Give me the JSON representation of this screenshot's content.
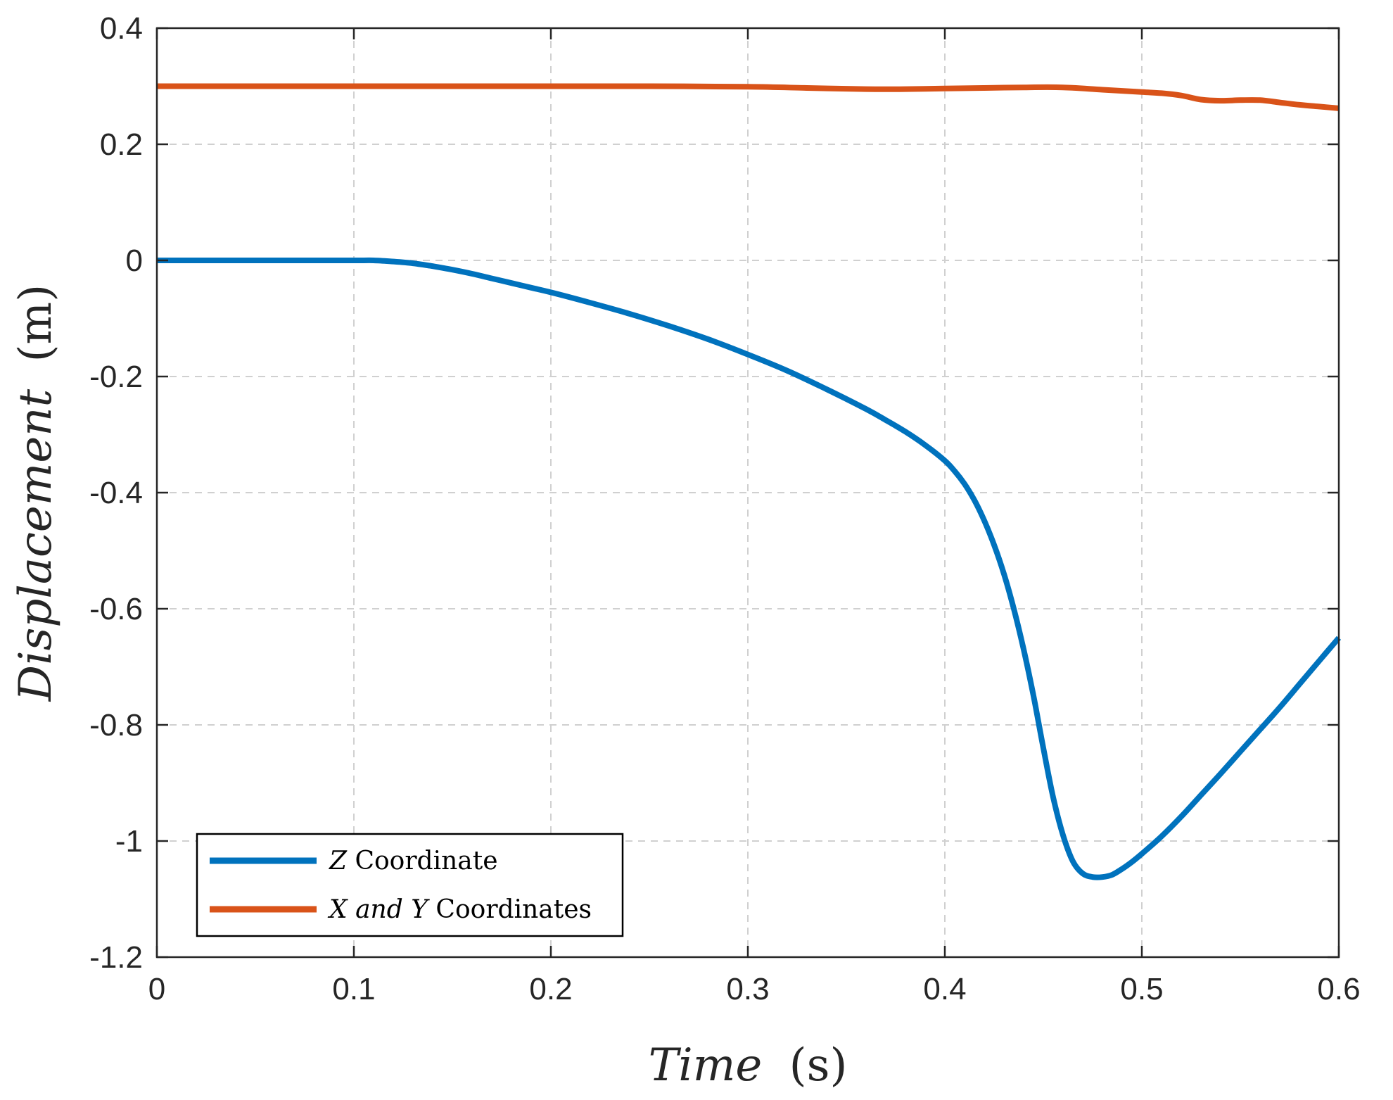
{
  "chart_data": {
    "type": "line",
    "title": "",
    "xlabel": {
      "var": "Time",
      "unit": "(s)"
    },
    "ylabel": {
      "var": "Displacement",
      "unit": "(m)"
    },
    "xlim": [
      0,
      0.6
    ],
    "ylim": [
      -1.2,
      0.4
    ],
    "xticks": [
      0,
      0.1,
      0.2,
      0.3,
      0.4,
      0.5,
      0.6
    ],
    "xtick_labels": [
      "0",
      "0.1",
      "0.2",
      "0.3",
      "0.4",
      "0.5",
      "0.6"
    ],
    "yticks": [
      0.4,
      0.2,
      0,
      -0.2,
      -0.4,
      -0.6,
      -0.8,
      -1,
      -1.2
    ],
    "ytick_labels": [
      "0.4",
      "0.2",
      "0",
      "-0.2",
      "-0.4",
      "-0.6",
      "-0.8",
      "-1",
      "-1.2"
    ],
    "grid": true,
    "legend_position": "bottom-left",
    "series": [
      {
        "name": "Z Coordinate",
        "legend_parts": [
          {
            "text": "Z",
            "italic": true
          },
          {
            "text": " Coordinate",
            "italic": false
          }
        ],
        "color": "#0072BD",
        "x": [
          0,
          0.05,
          0.1,
          0.11,
          0.12,
          0.13,
          0.14,
          0.15,
          0.16,
          0.17,
          0.18,
          0.19,
          0.2,
          0.22,
          0.24,
          0.26,
          0.28,
          0.3,
          0.32,
          0.34,
          0.36,
          0.37,
          0.38,
          0.39,
          0.4,
          0.405,
          0.41,
          0.415,
          0.42,
          0.425,
          0.43,
          0.435,
          0.44,
          0.445,
          0.45,
          0.455,
          0.46,
          0.465,
          0.47,
          0.475,
          0.48,
          0.485,
          0.49,
          0.495,
          0.5,
          0.51,
          0.52,
          0.53,
          0.54,
          0.55,
          0.56,
          0.57,
          0.58,
          0.59,
          0.6
        ],
        "y": [
          0,
          0,
          0,
          0,
          -0.002,
          -0.005,
          -0.01,
          -0.016,
          -0.023,
          -0.031,
          -0.039,
          -0.047,
          -0.055,
          -0.073,
          -0.092,
          -0.113,
          -0.136,
          -0.162,
          -0.19,
          -0.222,
          -0.256,
          -0.275,
          -0.295,
          -0.318,
          -0.345,
          -0.363,
          -0.385,
          -0.413,
          -0.448,
          -0.49,
          -0.54,
          -0.6,
          -0.67,
          -0.75,
          -0.84,
          -0.925,
          -0.99,
          -1.035,
          -1.056,
          -1.062,
          -1.062,
          -1.058,
          -1.048,
          -1.036,
          -1.022,
          -0.992,
          -0.958,
          -0.921,
          -0.884,
          -0.846,
          -0.808,
          -0.77,
          -0.73,
          -0.69,
          -0.65
        ]
      },
      {
        "name": "X and Y Coordinates",
        "legend_parts": [
          {
            "text": "X and Y",
            "italic": true
          },
          {
            "text": " Coordinates",
            "italic": false
          }
        ],
        "color": "#D95319",
        "x": [
          0,
          0.1,
          0.2,
          0.25,
          0.3,
          0.33,
          0.36,
          0.38,
          0.4,
          0.42,
          0.44,
          0.46,
          0.48,
          0.5,
          0.51,
          0.52,
          0.53,
          0.54,
          0.55,
          0.56,
          0.57,
          0.58,
          0.59,
          0.6
        ],
        "y": [
          0.3,
          0.3,
          0.3,
          0.3,
          0.299,
          0.297,
          0.295,
          0.295,
          0.296,
          0.297,
          0.298,
          0.298,
          0.294,
          0.29,
          0.288,
          0.284,
          0.277,
          0.275,
          0.276,
          0.276,
          0.272,
          0.268,
          0.265,
          0.262
        ]
      }
    ]
  }
}
